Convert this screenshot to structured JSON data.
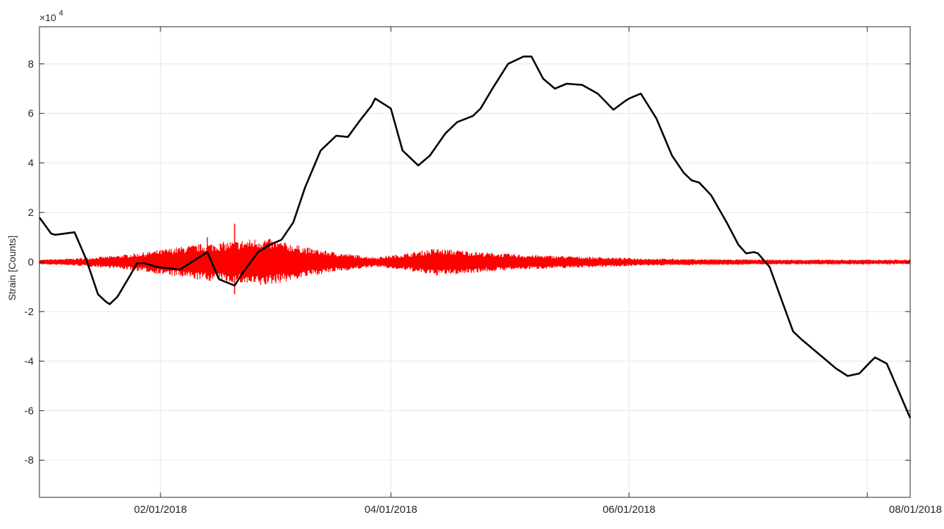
{
  "chart_data": {
    "type": "line",
    "title": "",
    "xlabel": "",
    "ylabel": "Strain [Counts]",
    "y_multiplier_base": "×10",
    "y_multiplier_exponent": "4",
    "xlim": [
      "2018-01-01",
      "2018-08-01"
    ],
    "ylim": [
      -9.5,
      9.5
    ],
    "x_ticks": [
      "2018-02-01",
      "2018-04-01",
      "2018-06-01",
      "2018-08-01"
    ],
    "x_tick_labels": [
      "02/01/2018",
      "04/01/2018",
      "06/01/2018",
      "08/01/2018"
    ],
    "y_ticks": [
      -8,
      -6,
      -4,
      -2,
      0,
      2,
      4,
      6,
      8
    ],
    "y_tick_labels": [
      "-8",
      "-6",
      "-4",
      "-2",
      "0",
      "2",
      "4",
      "6",
      "8"
    ],
    "grid": true,
    "colors": {
      "primary_series": "#000000",
      "secondary_series": "#ff0000",
      "grid": "#e6e6e6",
      "axes": "#262626"
    },
    "series": [
      {
        "color": "#000000",
        "style": "line",
        "points": [
          [
            "2018-01-01",
            1.8
          ],
          [
            "2018-01-04",
            1.15
          ],
          [
            "2018-01-05",
            1.1
          ],
          [
            "2018-01-10",
            1.2
          ],
          [
            "2018-01-13",
            0.1
          ],
          [
            "2018-01-16",
            -1.3
          ],
          [
            "2018-01-18",
            -1.6
          ],
          [
            "2018-01-19",
            -1.7
          ],
          [
            "2018-01-21",
            -1.4
          ],
          [
            "2018-01-24",
            -0.6
          ],
          [
            "2018-01-26",
            -0.05
          ],
          [
            "2018-01-28",
            -0.05
          ],
          [
            "2018-01-31",
            -0.2
          ],
          [
            "2018-02-03",
            -0.25
          ],
          [
            "2018-02-06",
            -0.3
          ],
          [
            "2018-02-10",
            0.1
          ],
          [
            "2018-02-13",
            0.4
          ],
          [
            "2018-02-16",
            -0.7
          ],
          [
            "2018-02-20",
            -0.95
          ],
          [
            "2018-02-22",
            -0.45
          ],
          [
            "2018-02-26",
            0.4
          ],
          [
            "2018-03-01",
            0.7
          ],
          [
            "2018-03-04",
            0.9
          ],
          [
            "2018-03-07",
            1.6
          ],
          [
            "2018-03-10",
            3.0
          ],
          [
            "2018-03-14",
            4.5
          ],
          [
            "2018-03-18",
            5.1
          ],
          [
            "2018-03-21",
            5.05
          ],
          [
            "2018-03-24",
            5.7
          ],
          [
            "2018-03-27",
            6.3
          ],
          [
            "2018-03-28",
            6.6
          ],
          [
            "2018-04-01",
            6.2
          ],
          [
            "2018-04-04",
            4.5
          ],
          [
            "2018-04-08",
            3.9
          ],
          [
            "2018-04-11",
            4.3
          ],
          [
            "2018-04-15",
            5.2
          ],
          [
            "2018-04-18",
            5.65
          ],
          [
            "2018-04-22",
            5.9
          ],
          [
            "2018-04-24",
            6.2
          ],
          [
            "2018-04-27",
            7.0
          ],
          [
            "2018-05-01",
            8.0
          ],
          [
            "2018-05-05",
            8.3
          ],
          [
            "2018-05-07",
            8.3
          ],
          [
            "2018-05-10",
            7.4
          ],
          [
            "2018-05-13",
            7.0
          ],
          [
            "2018-05-16",
            7.2
          ],
          [
            "2018-05-20",
            7.15
          ],
          [
            "2018-05-24",
            6.8
          ],
          [
            "2018-05-28",
            6.15
          ],
          [
            "2018-05-31",
            6.5
          ],
          [
            "2018-06-01",
            6.6
          ],
          [
            "2018-06-04",
            6.8
          ],
          [
            "2018-06-08",
            5.8
          ],
          [
            "2018-06-12",
            4.3
          ],
          [
            "2018-06-15",
            3.6
          ],
          [
            "2018-06-17",
            3.3
          ],
          [
            "2018-06-19",
            3.2
          ],
          [
            "2018-06-22",
            2.7
          ],
          [
            "2018-06-26",
            1.6
          ],
          [
            "2018-06-29",
            0.7
          ],
          [
            "2018-07-01",
            0.35
          ],
          [
            "2018-07-03",
            0.4
          ],
          [
            "2018-07-04",
            0.35
          ],
          [
            "2018-07-07",
            -0.2
          ],
          [
            "2018-07-10",
            -1.5
          ],
          [
            "2018-07-13",
            -2.8
          ],
          [
            "2018-07-15",
            -3.1
          ],
          [
            "2018-07-18",
            -3.5
          ],
          [
            "2018-07-21",
            -3.9
          ],
          [
            "2018-07-24",
            -4.3
          ],
          [
            "2018-07-27",
            -4.6
          ],
          [
            "2018-07-30",
            -4.5
          ],
          [
            "2018-08-02",
            -4.0
          ],
          [
            "2018-08-03",
            -3.85
          ],
          [
            "2018-08-06",
            -4.1
          ],
          [
            "2018-08-09",
            -5.2
          ],
          [
            "2018-08-12",
            -6.3
          ]
        ]
      },
      {
        "color": "#ff0000",
        "style": "points",
        "description": "oscillating scatter centred on 0; envelope half-width shown below",
        "envelope": [
          [
            "2018-01-01",
            0.1
          ],
          [
            "2018-01-10",
            0.15
          ],
          [
            "2018-01-20",
            0.25
          ],
          [
            "2018-01-28",
            0.4
          ],
          [
            "2018-02-05",
            0.6
          ],
          [
            "2018-02-12",
            0.75
          ],
          [
            "2018-02-20",
            0.85
          ],
          [
            "2018-02-27",
            1.0
          ],
          [
            "2018-03-05",
            0.8
          ],
          [
            "2018-03-12",
            0.55
          ],
          [
            "2018-03-20",
            0.35
          ],
          [
            "2018-03-28",
            0.2
          ],
          [
            "2018-04-05",
            0.35
          ],
          [
            "2018-04-12",
            0.55
          ],
          [
            "2018-04-18",
            0.5
          ],
          [
            "2018-04-25",
            0.4
          ],
          [
            "2018-05-05",
            0.3
          ],
          [
            "2018-05-15",
            0.25
          ],
          [
            "2018-05-25",
            0.2
          ],
          [
            "2018-06-05",
            0.15
          ],
          [
            "2018-06-20",
            0.12
          ],
          [
            "2018-07-10",
            0.1
          ],
          [
            "2018-08-01",
            0.1
          ],
          [
            "2018-08-12",
            0.1
          ]
        ],
        "spikes": [
          [
            "2018-02-13",
            1.0
          ],
          [
            "2018-02-13",
            -0.7
          ],
          [
            "2018-02-20",
            1.55
          ],
          [
            "2018-02-20",
            -1.3
          ]
        ]
      }
    ]
  }
}
